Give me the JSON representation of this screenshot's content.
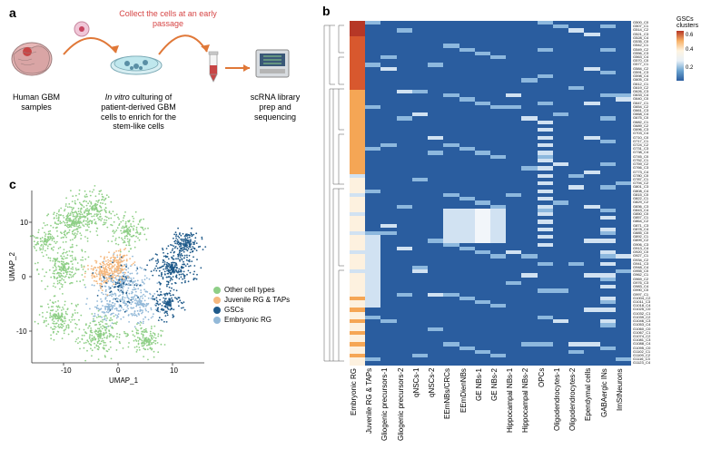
{
  "panelA": {
    "label": "a",
    "collect_text": "Collect the cells at an early passage",
    "sample_label": "Human GBM samples",
    "culturing_label_1": "In vitro",
    "culturing_label_2": " culturing of patient-derived GBM cells to enrich for the stem-like cells",
    "seq_label": "scRNA library prep and sequencing"
  },
  "panelB": {
    "label": "b",
    "colorbar_title": "GSCs clusters",
    "colorbar_ticks": [
      "0.6",
      "0.4",
      "0.2"
    ],
    "colorbar_colors": [
      "#b63726",
      "#f7b166",
      "#fef4e1",
      "#e8f0f7",
      "#6ba3d0",
      "#2a5d9f"
    ],
    "x_categories": [
      "Embryonic RG",
      "Juvenile RG & TAPs",
      "Gliogenic precursors-1",
      "Gliogenic precursors-2",
      "qNSCs-1",
      "qNSCs-2",
      "EEmNBs/CRCs",
      "EEmDienNBs",
      "GE NBs-1",
      "GE NBs-2",
      "Hippocampal NBs-1",
      "Hippocampal NBs-2",
      "OPCs",
      "Oligodendrocytes-1",
      "Oligodendrocytes-2",
      "Ependymal cells",
      "GABAergic INs",
      "ImStNeurons"
    ],
    "n_rows": 90,
    "row_label_prefix": "G",
    "row_label_suffix": "_C",
    "blue": "#2a5d9f",
    "lightblue": "#8db8de",
    "paleblue": "#d1e2f2",
    "nearwhite": "#f2f6fa",
    "cream": "#fdf1df",
    "orange": "#f5a655",
    "hot": "#d8582e",
    "deep": "#b63726"
  },
  "panelC": {
    "label": "c",
    "x_axis": "UMAP_1",
    "y_axis": "UMAP_2",
    "legend": [
      {
        "label": "Other cell types",
        "color": "#8fcf87"
      },
      {
        "label": "Juvenile RG & TAPs",
        "color": "#f5b87f"
      },
      {
        "label": "GSCs",
        "color": "#1f5a8a"
      },
      {
        "label": "Embryonic RG",
        "color": "#93b9d8"
      }
    ],
    "x_ticks": [
      "-10",
      "0",
      "10"
    ],
    "y_ticks": [
      "-10",
      "0",
      "10"
    ]
  }
}
